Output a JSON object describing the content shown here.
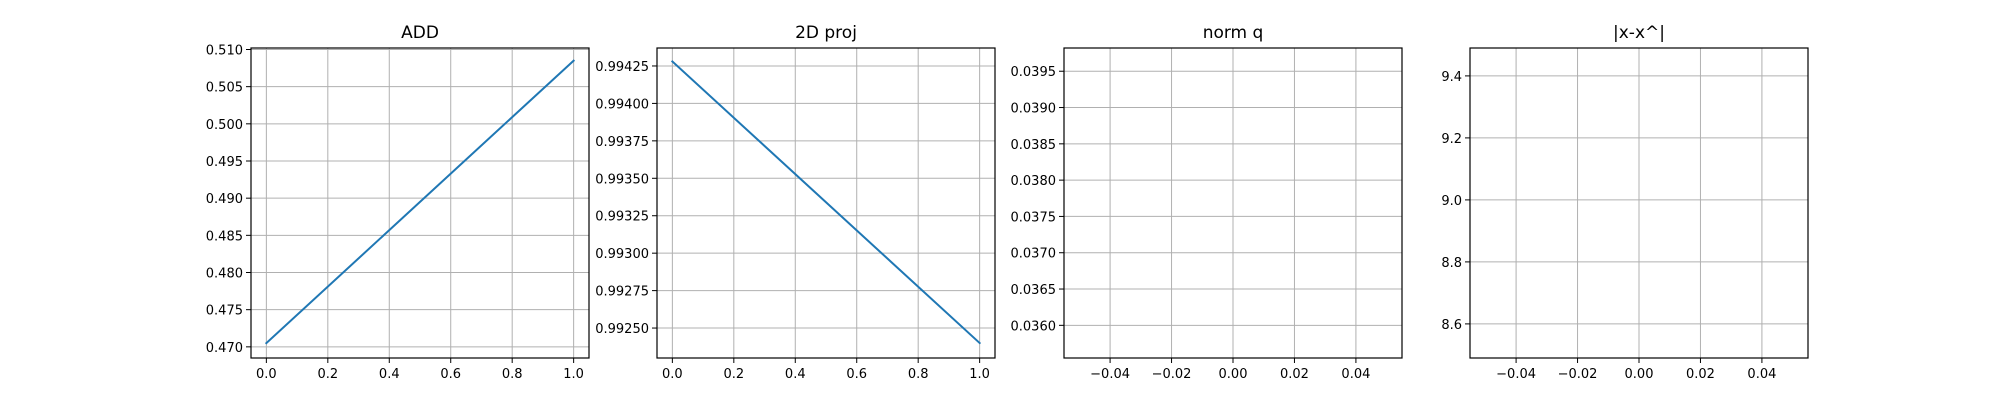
{
  "chart_data": [
    {
      "type": "line",
      "title": "ADD",
      "xlim": [
        -0.05,
        1.05
      ],
      "ylim": [
        0.4685,
        0.5102
      ],
      "xticks": [
        0.0,
        0.2,
        0.4,
        0.6,
        0.8,
        1.0
      ],
      "xtick_labels": [
        "0.0",
        "0.2",
        "0.4",
        "0.6",
        "0.8",
        "1.0"
      ],
      "yticks": [
        0.47,
        0.475,
        0.48,
        0.485,
        0.49,
        0.495,
        0.5,
        0.505,
        0.51
      ],
      "ytick_labels": [
        "0.470",
        "0.475",
        "0.480",
        "0.485",
        "0.490",
        "0.495",
        "0.500",
        "0.505",
        "0.510"
      ],
      "grid": true,
      "series": [
        {
          "x": [
            0.0,
            1.0
          ],
          "y": [
            0.4705,
            0.5085
          ],
          "color": "#1f77b4"
        }
      ]
    },
    {
      "type": "line",
      "title": "2D proj",
      "xlim": [
        -0.05,
        1.05
      ],
      "ylim": [
        0.9923,
        0.99437
      ],
      "xticks": [
        0.0,
        0.2,
        0.4,
        0.6,
        0.8,
        1.0
      ],
      "xtick_labels": [
        "0.0",
        "0.2",
        "0.4",
        "0.6",
        "0.8",
        "1.0"
      ],
      "yticks": [
        0.9925,
        0.99275,
        0.993,
        0.99325,
        0.9935,
        0.99375,
        0.994,
        0.99425
      ],
      "ytick_labels": [
        "0.99250",
        "0.99275",
        "0.99300",
        "0.99325",
        "0.99350",
        "0.99375",
        "0.99400",
        "0.99425"
      ],
      "grid": true,
      "series": [
        {
          "x": [
            0.0,
            1.0
          ],
          "y": [
            0.99428,
            0.9924
          ],
          "color": "#1f77b4"
        }
      ]
    },
    {
      "type": "line",
      "title": "norm q",
      "xlim": [
        -0.055,
        0.055
      ],
      "ylim": [
        0.03555,
        0.03982
      ],
      "xticks": [
        -0.04,
        -0.02,
        0.0,
        0.02,
        0.04
      ],
      "xtick_labels": [
        "−0.04",
        "−0.02",
        "0.00",
        "0.02",
        "0.04"
      ],
      "yticks": [
        0.036,
        0.0365,
        0.037,
        0.0375,
        0.038,
        0.0385,
        0.039,
        0.0395
      ],
      "ytick_labels": [
        "0.0360",
        "0.0365",
        "0.0370",
        "0.0375",
        "0.0380",
        "0.0385",
        "0.0390",
        "0.0395"
      ],
      "grid": true,
      "series": []
    },
    {
      "type": "line",
      "title": "|x-x^|",
      "xlim": [
        -0.055,
        0.055
      ],
      "ylim": [
        8.49,
        9.49
      ],
      "xticks": [
        -0.04,
        -0.02,
        0.0,
        0.02,
        0.04
      ],
      "xtick_labels": [
        "−0.04",
        "−0.02",
        "0.00",
        "0.02",
        "0.04"
      ],
      "yticks": [
        8.6,
        8.8,
        9.0,
        9.2,
        9.4
      ],
      "ytick_labels": [
        "8.6",
        "8.8",
        "9.0",
        "9.2",
        "9.4"
      ],
      "grid": true,
      "series": []
    }
  ]
}
